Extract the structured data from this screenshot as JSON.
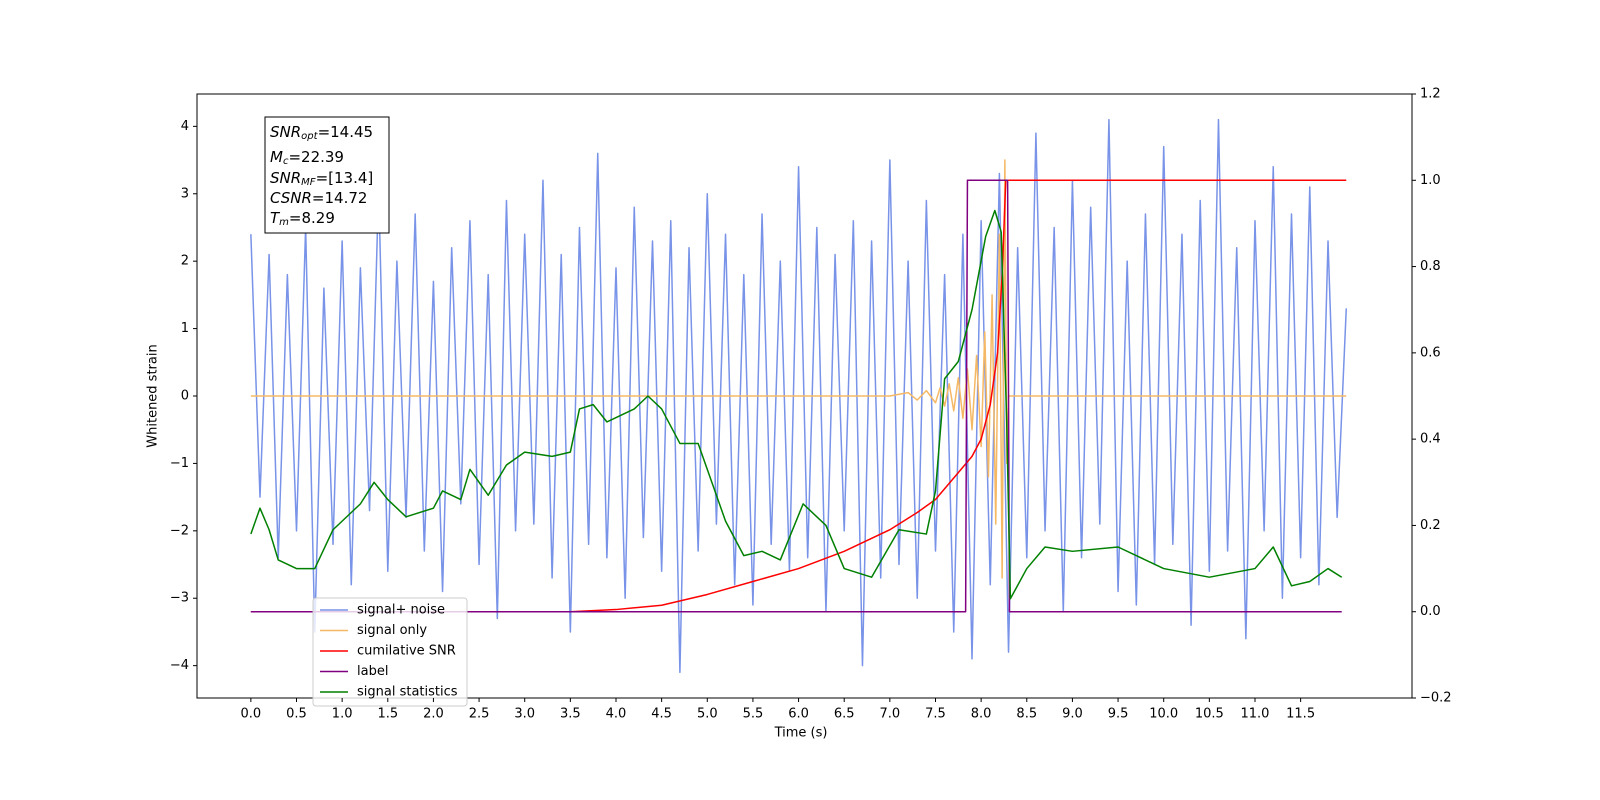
{
  "chart_data": {
    "type": "line",
    "xlabel": "Time (s)",
    "ylabel": "Whitened strain",
    "xlim": [
      -0.59,
      12.72
    ],
    "ylim": [
      -4.48,
      4.48
    ],
    "y2lim": [
      -0.2,
      1.2
    ],
    "xticks": [
      {
        "value": 0,
        "label": "0.0"
      },
      0.5,
      {
        "value": 1,
        "label": "1.0"
      },
      1.5,
      {
        "value": 2,
        "label": "2.0"
      },
      2.5,
      {
        "value": 3,
        "label": "3.0"
      },
      3.5,
      {
        "value": 4,
        "label": "4.0"
      },
      4.5,
      {
        "value": 5,
        "label": "5.0"
      },
      5.5,
      {
        "value": 6,
        "label": "6.0"
      },
      6.5,
      {
        "value": 7,
        "label": "7.0"
      },
      7.5,
      {
        "value": 8,
        "label": "8.0"
      },
      8.5,
      {
        "value": 9,
        "label": "9.0"
      },
      9.5,
      {
        "value": 10,
        "label": "10.0"
      },
      10.5,
      {
        "value": 11,
        "label": "11.0"
      },
      11.5
    ],
    "yticks": [
      {
        "value": -4,
        "label": "−4"
      },
      {
        "value": -3,
        "label": "−3"
      },
      {
        "value": -2,
        "label": "−2"
      },
      {
        "value": -1,
        "label": "−1"
      },
      0,
      1,
      2,
      3,
      4
    ],
    "y2ticks": [
      {
        "value": -0.2,
        "label": "−0.2"
      },
      {
        "value": 0,
        "label": "0.0"
      },
      0.2,
      0.4,
      0.6,
      0.8,
      {
        "value": 1,
        "label": "1.0"
      },
      1.2
    ],
    "annotation": [
      {
        "symbol": "SNR",
        "subscript": "opt",
        "text": "=14.45"
      },
      {
        "symbol": "M",
        "subscript": "c",
        "text": "=22.39"
      },
      {
        "symbol": "SNR",
        "subscript": "MF",
        "text": "=[13.4]"
      },
      {
        "symbol": "CSNR",
        "text": "=14.72"
      },
      {
        "symbol": "T",
        "subscript": "m",
        "text": "=8.29"
      }
    ],
    "series": [
      {
        "name": "signal+ noise",
        "color": "#7893e8",
        "axis": "y",
        "x": [
          0,
          0.1,
          0.2,
          0.3,
          0.4,
          0.5,
          0.6,
          0.7,
          0.8,
          0.9,
          1,
          1.1,
          1.2,
          1.3,
          1.4,
          1.5,
          1.6,
          1.7,
          1.8,
          1.9,
          2,
          2.1,
          2.2,
          2.3,
          2.4,
          2.5,
          2.6,
          2.7,
          2.8,
          2.9,
          3,
          3.1,
          3.2,
          3.3,
          3.4,
          3.5,
          3.6,
          3.7,
          3.8,
          3.9,
          4,
          4.1,
          4.2,
          4.3,
          4.4,
          4.5,
          4.6,
          4.7,
          4.8,
          4.9,
          5,
          5.1,
          5.2,
          5.3,
          5.4,
          5.5,
          5.6,
          5.7,
          5.8,
          5.9,
          6,
          6.1,
          6.2,
          6.3,
          6.4,
          6.5,
          6.6,
          6.7,
          6.8,
          6.9,
          7,
          7.1,
          7.2,
          7.3,
          7.4,
          7.5,
          7.6,
          7.7,
          7.8,
          7.9,
          8,
          8.1,
          8.2,
          8.3,
          8.4,
          8.5,
          8.6,
          8.7,
          8.8,
          8.9,
          9,
          9.1,
          9.2,
          9.3,
          9.4,
          9.5,
          9.6,
          9.7,
          9.8,
          9.9,
          10,
          10.1,
          10.2,
          10.3,
          10.4,
          10.5,
          10.6,
          10.7,
          10.8,
          10.9,
          11,
          11.1,
          11.2,
          11.3,
          11.4,
          11.5,
          11.6,
          11.7,
          11.8,
          11.9,
          12
        ],
        "values": [
          2.4,
          -1.5,
          2.1,
          -2.4,
          1.8,
          -2.0,
          2.5,
          -3.5,
          1.6,
          -2.2,
          2.3,
          -2.8,
          1.9,
          -1.7,
          3.1,
          -2.6,
          2.0,
          -1.8,
          2.7,
          -2.3,
          1.7,
          -2.9,
          2.2,
          -1.6,
          2.6,
          -2.5,
          1.8,
          -3.3,
          2.9,
          -2.0,
          2.4,
          -1.9,
          3.2,
          -2.7,
          2.1,
          -3.5,
          2.5,
          -2.2,
          3.6,
          -2.4,
          1.9,
          -3.0,
          2.8,
          -2.1,
          2.3,
          -2.6,
          2.6,
          -4.1,
          2.2,
          -2.3,
          3.0,
          -1.9,
          2.4,
          -2.8,
          1.8,
          -3.1,
          2.7,
          -2.2,
          2.0,
          -2.6,
          3.4,
          -2.4,
          2.5,
          -3.2,
          2.1,
          -2.0,
          2.6,
          -4.0,
          2.3,
          -2.7,
          3.5,
          -2.5,
          2.0,
          -3.0,
          2.9,
          -2.3,
          1.8,
          -3.5,
          2.4,
          -3.9,
          2.6,
          -2.8,
          3.3,
          -3.8,
          2.2,
          -2.4,
          3.9,
          -2.0,
          2.5,
          -3.2,
          3.2,
          -2.4,
          2.8,
          -1.9,
          4.1,
          -2.9,
          2.0,
          -3.1,
          2.7,
          -2.5,
          3.7,
          -2.2,
          2.4,
          -3.4,
          2.9,
          -2.6,
          4.1,
          -2.3,
          2.2,
          -3.6,
          2.6,
          -2.0,
          3.4,
          -3.0,
          2.7,
          -2.4,
          3.1,
          -2.8,
          2.3,
          -1.8,
          1.3
        ]
      },
      {
        "name": "signal only",
        "color": "#f5b865",
        "axis": "y",
        "x": [
          0,
          7.0,
          7.2,
          7.3,
          7.4,
          7.5,
          7.55,
          7.6,
          7.65,
          7.7,
          7.75,
          7.8,
          7.85,
          7.9,
          7.95,
          8.0,
          8.04,
          8.08,
          8.12,
          8.16,
          8.2,
          8.23,
          8.26,
          8.28,
          8.3,
          12.0
        ],
        "values": [
          0,
          0,
          0.05,
          -0.06,
          0.08,
          -0.1,
          0.12,
          -0.15,
          0.18,
          -0.22,
          0.27,
          -0.33,
          0.4,
          -0.5,
          0.6,
          -0.75,
          0.95,
          -1.2,
          1.5,
          -1.9,
          2.4,
          -2.7,
          3.5,
          -1.0,
          0,
          0
        ]
      },
      {
        "name": "cumilative SNR",
        "color": "#ff0000",
        "axis": "y2",
        "x": [
          0,
          3.5,
          4.0,
          4.5,
          5.0,
          5.5,
          6.0,
          6.5,
          7.0,
          7.3,
          7.5,
          7.7,
          7.9,
          8.0,
          8.1,
          8.18,
          8.23,
          8.27,
          12.0
        ],
        "values": [
          0,
          0,
          0.005,
          0.015,
          0.04,
          0.07,
          0.1,
          0.14,
          0.19,
          0.23,
          0.26,
          0.31,
          0.36,
          0.4,
          0.48,
          0.6,
          0.78,
          1.0,
          1.0
        ]
      },
      {
        "name": "label",
        "color": "#800080",
        "axis": "y2",
        "x": [
          0,
          7.83,
          7.85,
          8.29,
          8.31,
          11.95
        ],
        "values": [
          0,
          0,
          1,
          1,
          0,
          0
        ]
      },
      {
        "name": "signal statistics",
        "color": "#008000",
        "axis": "y2",
        "x": [
          0,
          0.1,
          0.2,
          0.3,
          0.5,
          0.7,
          0.9,
          1.1,
          1.2,
          1.35,
          1.5,
          1.7,
          2.0,
          2.1,
          2.3,
          2.4,
          2.6,
          2.8,
          3.0,
          3.3,
          3.5,
          3.6,
          3.75,
          3.9,
          4.2,
          4.35,
          4.5,
          4.7,
          4.9,
          5.2,
          5.4,
          5.6,
          5.8,
          6.05,
          6.3,
          6.5,
          6.8,
          7.1,
          7.4,
          7.5,
          7.6,
          7.75,
          7.9,
          8.05,
          8.15,
          8.22,
          8.28,
          8.32,
          8.5,
          8.7,
          9.0,
          9.5,
          10.0,
          10.5,
          11.0,
          11.2,
          11.4,
          11.6,
          11.8,
          11.95
        ],
        "values": [
          0.18,
          0.24,
          0.19,
          0.12,
          0.1,
          0.1,
          0.19,
          0.23,
          0.25,
          0.3,
          0.26,
          0.22,
          0.24,
          0.28,
          0.26,
          0.33,
          0.27,
          0.34,
          0.37,
          0.36,
          0.37,
          0.47,
          0.48,
          0.44,
          0.47,
          0.5,
          0.47,
          0.39,
          0.39,
          0.21,
          0.13,
          0.14,
          0.12,
          0.25,
          0.2,
          0.1,
          0.08,
          0.19,
          0.18,
          0.28,
          0.54,
          0.58,
          0.7,
          0.87,
          0.93,
          0.88,
          0.44,
          0.03,
          0.1,
          0.15,
          0.14,
          0.15,
          0.1,
          0.08,
          0.1,
          0.15,
          0.06,
          0.07,
          0.1,
          0.08
        ]
      }
    ]
  }
}
